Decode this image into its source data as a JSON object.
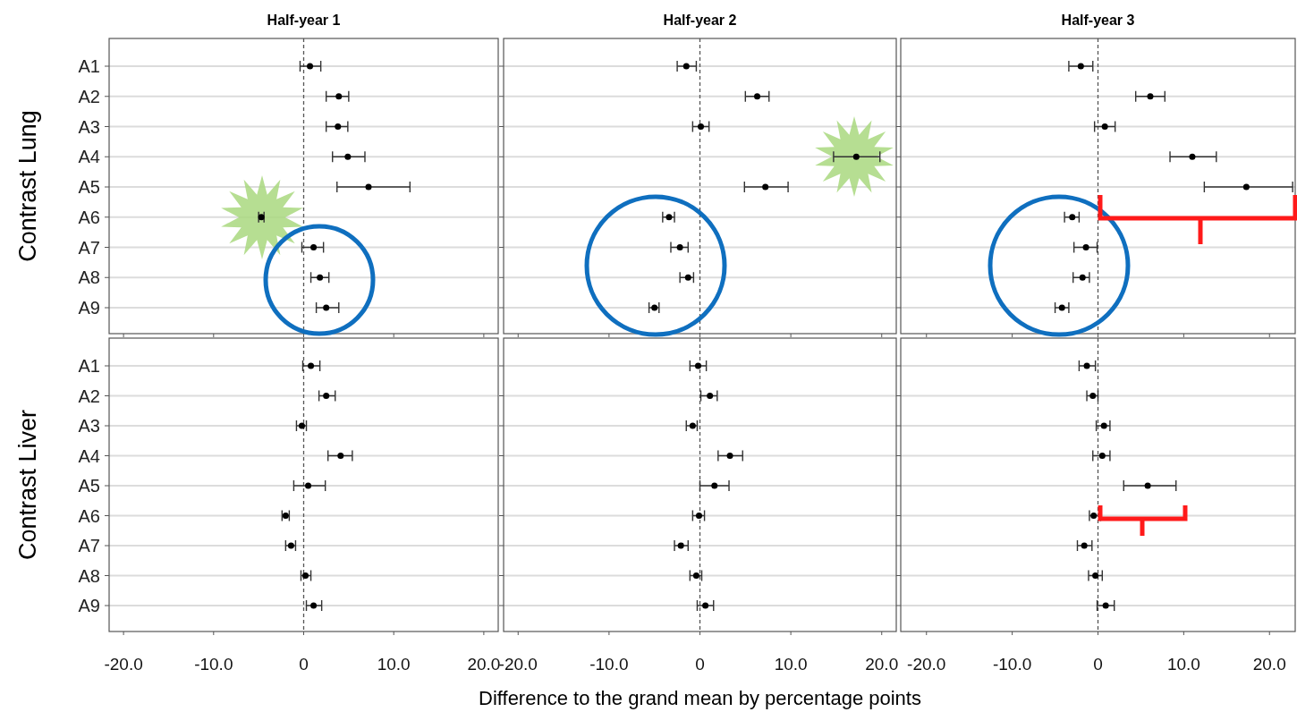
{
  "chart_data": [
    {
      "type": "scatter",
      "orientation": "horizontal",
      "title": "Half-year 1",
      "ylabel": "Contrast Lung",
      "categories": [
        "A1",
        "A2",
        "A3",
        "A4",
        "A5",
        "A6",
        "A7",
        "A8",
        "A9"
      ],
      "color": "#000000",
      "marker": "circle",
      "grid": "y",
      "tick_labels": "y",
      "values": [
        0.7,
        3.9,
        3.8,
        4.9,
        7.2,
        -4.7,
        1.1,
        1.8,
        2.5
      ],
      "errors": [
        [
          -0.4,
          1.9
        ],
        [
          2.5,
          5.0
        ],
        [
          2.5,
          4.9
        ],
        [
          3.2,
          6.8
        ],
        [
          3.7,
          11.8
        ],
        [
          -5.0,
          -4.4
        ],
        [
          -0.2,
          2.2
        ],
        [
          0.8,
          2.8
        ],
        [
          1.4,
          3.9
        ]
      ],
      "xlim": [
        -21.6,
        21.6
      ],
      "xticks": [
        {
          "value": -20,
          "label": null
        },
        {
          "value": -10,
          "label": null
        },
        {
          "value": 0,
          "label": null
        },
        {
          "value": 10,
          "label": null
        },
        {
          "value": 20,
          "label": null
        }
      ],
      "ref_lines": [
        {
          "axis": "x",
          "value": 0,
          "line_style": "dashed"
        }
      ]
    },
    {
      "type": "scatter",
      "orientation": "horizontal",
      "title": "Half-year 2",
      "categories": [
        null,
        null,
        null,
        null,
        null,
        null,
        null,
        null,
        null
      ],
      "color": "#000000",
      "marker": "circle",
      "grid": "y",
      "tick_labels": false,
      "values": [
        -1.5,
        6.3,
        0.1,
        17.2,
        7.2,
        -3.4,
        -2.2,
        -1.3,
        -5.0
      ],
      "errors": [
        [
          -2.5,
          -0.4
        ],
        [
          5.0,
          7.6
        ],
        [
          -0.8,
          1.0
        ],
        [
          14.7,
          19.8
        ],
        [
          4.9,
          9.7
        ],
        [
          -4.1,
          -2.8
        ],
        [
          -3.2,
          -1.3
        ],
        [
          -2.2,
          -0.7
        ],
        [
          -5.6,
          -4.5
        ]
      ],
      "xlim": [
        -21.6,
        21.6
      ],
      "xticks": [
        {
          "value": -20,
          "label": null
        },
        {
          "value": -10,
          "label": null
        },
        {
          "value": 0,
          "label": null
        },
        {
          "value": 10,
          "label": null
        },
        {
          "value": 20,
          "label": null
        }
      ],
      "ref_lines": [
        {
          "axis": "x",
          "value": 0,
          "line_style": "dashed"
        }
      ]
    },
    {
      "type": "scatter",
      "orientation": "horizontal",
      "title": "Half-year 3",
      "categories": [
        null,
        null,
        null,
        null,
        null,
        null,
        null,
        null,
        null
      ],
      "color": "#000000",
      "marker": "circle",
      "grid": "y",
      "tick_labels": false,
      "values": [
        -2.0,
        6.1,
        0.8,
        11.0,
        17.3,
        -3.0,
        -1.4,
        -1.8,
        -4.2
      ],
      "errors": [
        [
          -3.4,
          -0.6
        ],
        [
          4.4,
          7.8
        ],
        [
          -0.4,
          2.0
        ],
        [
          8.4,
          13.8
        ],
        [
          12.4,
          22.7
        ],
        [
          -3.9,
          -2.2
        ],
        [
          -2.8,
          -0.1
        ],
        [
          -2.9,
          -1.0
        ],
        [
          -5.0,
          -3.4
        ]
      ],
      "xlim": [
        -23,
        23
      ],
      "xticks": [
        {
          "value": -20,
          "label": null
        },
        {
          "value": -10,
          "label": null
        },
        {
          "value": 0,
          "label": null
        },
        {
          "value": 10,
          "label": null
        },
        {
          "value": 20,
          "label": null
        }
      ],
      "ref_lines": [
        {
          "axis": "x",
          "value": 0,
          "line_style": "dashed"
        }
      ]
    },
    {
      "type": "scatter",
      "orientation": "horizontal",
      "ylabel": "Contrast Liver",
      "categories": [
        "A1",
        "A2",
        "A3",
        "A4",
        "A5",
        "A6",
        "A7",
        "A8",
        "A9"
      ],
      "color": "#000000",
      "marker": "circle",
      "grid": "y",
      "values": [
        0.8,
        2.5,
        -0.2,
        4.1,
        0.5,
        -2.0,
        -1.4,
        0.2,
        1.1
      ],
      "errors": [
        [
          -0.1,
          1.8
        ],
        [
          1.7,
          3.5
        ],
        [
          -0.8,
          0.3
        ],
        [
          2.7,
          5.4
        ],
        [
          -1.1,
          2.4
        ],
        [
          -2.4,
          -1.6
        ],
        [
          -2.0,
          -0.9
        ],
        [
          -0.3,
          0.8
        ],
        [
          0.3,
          2.0
        ]
      ],
      "xlim": [
        -21.6,
        21.6
      ],
      "xticks": [
        {
          "value": -20,
          "label": "-20.0"
        },
        {
          "value": -10,
          "label": "-10.0"
        },
        {
          "value": 0,
          "label": "0"
        },
        {
          "value": 10,
          "label": "10.0"
        },
        {
          "value": 20,
          "label": "20.0"
        }
      ],
      "ref_lines": [
        {
          "axis": "x",
          "value": 0,
          "line_style": "dashed"
        }
      ]
    },
    {
      "type": "scatter",
      "orientation": "horizontal",
      "xlabel": "Difference to the grand mean by percentage points",
      "categories": [
        null,
        null,
        null,
        null,
        null,
        null,
        null,
        null,
        null
      ],
      "color": "#000000",
      "marker": "circle",
      "grid": "y",
      "tick_labels": "x",
      "values": [
        -0.2,
        1.1,
        -0.8,
        3.3,
        1.6,
        -0.1,
        -2.1,
        -0.4,
        0.6
      ],
      "errors": [
        [
          -1.1,
          0.7
        ],
        [
          0.1,
          1.9
        ],
        [
          -1.5,
          -0.3
        ],
        [
          2.0,
          4.7
        ],
        [
          0.0,
          3.2
        ],
        [
          -0.8,
          0.5
        ],
        [
          -2.8,
          -1.3
        ],
        [
          -1.1,
          0.2
        ],
        [
          -0.3,
          1.5
        ]
      ],
      "xlim": [
        -21.6,
        21.6
      ],
      "xticks": [
        {
          "value": -20,
          "label": "-20.0"
        },
        {
          "value": -10,
          "label": "-10.0"
        },
        {
          "value": 0,
          "label": "0"
        },
        {
          "value": 10,
          "label": "10.0"
        },
        {
          "value": 20,
          "label": "20.0"
        }
      ],
      "ref_lines": [
        {
          "axis": "x",
          "value": 0,
          "line_style": "dashed"
        }
      ]
    },
    {
      "type": "scatter",
      "orientation": "horizontal",
      "categories": [
        null,
        null,
        null,
        null,
        null,
        null,
        null,
        null,
        null
      ],
      "color": "#000000",
      "marker": "circle",
      "grid": "y",
      "tick_labels": "x",
      "values": [
        -1.3,
        -0.6,
        0.7,
        0.5,
        5.8,
        -0.5,
        -1.6,
        -0.3,
        0.9
      ],
      "errors": [
        [
          -2.2,
          -0.3
        ],
        [
          -1.3,
          0.0
        ],
        [
          -0.2,
          1.4
        ],
        [
          -0.6,
          1.4
        ],
        [
          3.0,
          9.1
        ],
        [
          -1.0,
          0.3
        ],
        [
          -2.4,
          -0.7
        ],
        [
          -1.1,
          0.5
        ],
        [
          -0.1,
          1.9
        ]
      ],
      "xlim": [
        -23,
        23
      ],
      "xticks": [
        {
          "value": -20,
          "label": "-20.0"
        },
        {
          "value": -10,
          "label": "-10.0"
        },
        {
          "value": 0,
          "label": "0"
        },
        {
          "value": 10,
          "label": "10.0"
        },
        {
          "value": 20,
          "label": "20.0"
        }
      ],
      "ref_lines": [
        {
          "axis": "x",
          "value": 0,
          "line_style": "dashed"
        }
      ]
    }
  ]
}
